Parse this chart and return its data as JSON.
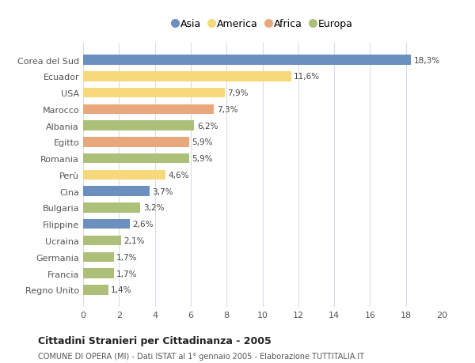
{
  "categories": [
    "Corea del Sud",
    "Ecuador",
    "USA",
    "Marocco",
    "Albania",
    "Egitto",
    "Romania",
    "Perù",
    "Cina",
    "Bulgaria",
    "Filippine",
    "Ucraina",
    "Germania",
    "Francia",
    "Regno Unito"
  ],
  "values": [
    18.3,
    11.6,
    7.9,
    7.3,
    6.2,
    5.9,
    5.9,
    4.6,
    3.7,
    3.2,
    2.6,
    2.1,
    1.7,
    1.7,
    1.4
  ],
  "labels": [
    "18,3%",
    "11,6%",
    "7,9%",
    "7,3%",
    "6,2%",
    "5,9%",
    "5,9%",
    "4,6%",
    "3,7%",
    "3,2%",
    "2,6%",
    "2,1%",
    "1,7%",
    "1,7%",
    "1,4%"
  ],
  "colors": [
    "#6b8fbe",
    "#f7d87a",
    "#f7d87a",
    "#e8a87c",
    "#adc07a",
    "#e8a87c",
    "#adc07a",
    "#f7d87a",
    "#6b8fbe",
    "#adc07a",
    "#6b8fbe",
    "#adc07a",
    "#adc07a",
    "#adc07a",
    "#adc07a"
  ],
  "legend_labels": [
    "Asia",
    "America",
    "Africa",
    "Europa"
  ],
  "legend_colors": [
    "#6b8fbe",
    "#f7d87a",
    "#e8a87c",
    "#adc07a"
  ],
  "title": "Cittadini Stranieri per Cittadinanza - 2005",
  "subtitle": "COMUNE DI OPERA (MI) - Dati ISTAT al 1° gennaio 2005 - Elaborazione TUTTITALIA.IT",
  "xlim": [
    0,
    20
  ],
  "xticks": [
    0,
    2,
    4,
    6,
    8,
    10,
    12,
    14,
    16,
    18,
    20
  ],
  "bg_color": "#ffffff",
  "grid_color": "#d8dce8",
  "bar_height": 0.6
}
